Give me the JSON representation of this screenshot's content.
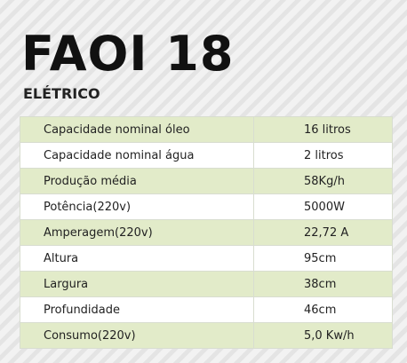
{
  "header": {
    "title": "FAOI 18",
    "subtitle": "ELÉTRICO"
  },
  "table": {
    "rows": [
      [
        "Capacidade nominal óleo",
        "16 litros"
      ],
      [
        "Capacidade nominal água",
        "2 litros"
      ],
      [
        "Produção média",
        "58Kg/h"
      ],
      [
        "Potência(220v)",
        "5000W"
      ],
      [
        "Amperagem(220v)",
        "22,72 A"
      ],
      [
        "Altura",
        "95cm"
      ],
      [
        "Largura",
        "38cm"
      ],
      [
        "Profundidade",
        "46cm"
      ],
      [
        "Consumo(220v)",
        "5,0 Kw/h"
      ]
    ]
  }
}
